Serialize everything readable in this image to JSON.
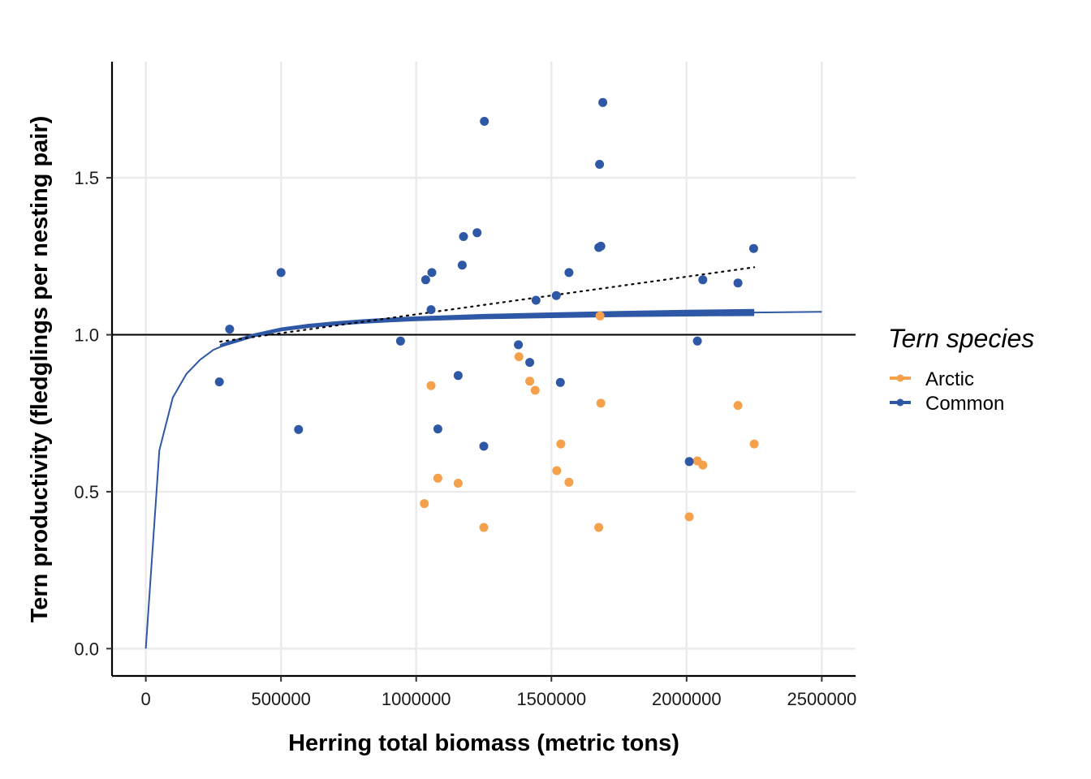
{
  "chart_data": {
    "type": "scatter",
    "title": "",
    "xlabel": "Herring total biomass (metric tons)",
    "ylabel": "Tern productivity (fledglings per nesting pair)",
    "xlim": [
      -125000,
      2625000
    ],
    "ylim": [
      -0.087,
      1.87
    ],
    "x_ticks": [
      0,
      500000,
      1000000,
      1500000,
      2000000,
      2500000
    ],
    "x_tick_labels": [
      "0",
      "500000",
      "1000000",
      "1500000",
      "2000000",
      "2500000"
    ],
    "y_ticks": [
      0.0,
      0.5,
      1.0,
      1.5
    ],
    "y_tick_labels": [
      "0.0",
      "0.5",
      "1.0",
      "1.5"
    ],
    "grid": true,
    "legend_position": "right",
    "legend": {
      "title": "Tern species",
      "entries": [
        {
          "label": "Arctic",
          "color": "#f5a04b"
        },
        {
          "label": "Common",
          "color": "#2e58a5"
        }
      ]
    },
    "reference_line_y": 1.0,
    "series": [
      {
        "name": "Arctic",
        "color": "#f5a04b",
        "x": [
          1030000,
          1055000,
          1080000,
          1155000,
          1250000,
          1380000,
          1420000,
          1440000,
          1520000,
          1535000,
          1565000,
          1675000,
          1680000,
          1683000,
          2010000,
          2040000,
          2060000,
          2190000,
          2250000
        ],
        "y": [
          0.462,
          0.838,
          0.543,
          0.527,
          0.386,
          0.93,
          0.852,
          0.823,
          0.567,
          0.652,
          0.53,
          0.386,
          1.06,
          0.782,
          0.42,
          0.598,
          0.585,
          0.775,
          0.652
        ]
      },
      {
        "name": "Common",
        "color": "#2e58a5",
        "x": [
          272000,
          310000,
          500000,
          565000,
          942000,
          1035000,
          1055000,
          1058000,
          1080000,
          1155000,
          1170000,
          1175000,
          1225000,
          1250000,
          1252000,
          1378000,
          1420000,
          1443000,
          1518000,
          1533000,
          1565000,
          1675000,
          1678000,
          1683000,
          1690000,
          2010000,
          2040000,
          2060000,
          2190000,
          2248000
        ],
        "y": [
          0.85,
          1.018,
          1.198,
          0.698,
          0.98,
          1.175,
          1.08,
          1.198,
          0.7,
          0.87,
          1.222,
          1.313,
          1.325,
          0.645,
          1.68,
          0.968,
          0.912,
          1.11,
          1.125,
          0.848,
          1.198,
          1.278,
          1.543,
          1.282,
          1.74,
          0.596,
          0.98,
          1.175,
          1.165,
          1.275
        ]
      }
    ],
    "fitted_curve": {
      "color": "#2e58a5",
      "x": [
        0,
        50000,
        100000,
        150000,
        200000,
        250000,
        300000,
        350000,
        400000,
        450000,
        500000,
        550000,
        600000,
        700000,
        800000,
        900000,
        1000000,
        1250000,
        1500000,
        1750000,
        2000000,
        2250000,
        2500000
      ],
      "y": [
        0.0,
        0.632,
        0.8,
        0.875,
        0.92,
        0.952,
        0.97,
        0.985,
        0.998,
        1.008,
        1.017,
        1.023,
        1.028,
        1.036,
        1.042,
        1.047,
        1.051,
        1.058,
        1.062,
        1.066,
        1.069,
        1.071,
        1.073
      ]
    },
    "bootstrap_band": {
      "color": "#2e58a5",
      "offsets": [
        -0.008,
        -0.004,
        0.0,
        0.004,
        0.008
      ],
      "x": [
        275000,
        325000,
        400000,
        500000,
        600000,
        700000,
        800000,
        900000,
        1000000,
        1250000,
        1500000,
        1750000,
        2000000,
        2250000
      ],
      "y": [
        0.965,
        0.978,
        0.998,
        1.017,
        1.028,
        1.036,
        1.042,
        1.047,
        1.051,
        1.058,
        1.062,
        1.066,
        1.069,
        1.071
      ]
    },
    "linear_fit": {
      "style": "dotted",
      "color": "#000000",
      "x": [
        275000,
        2250000
      ],
      "y": [
        0.978,
        1.215
      ]
    }
  }
}
